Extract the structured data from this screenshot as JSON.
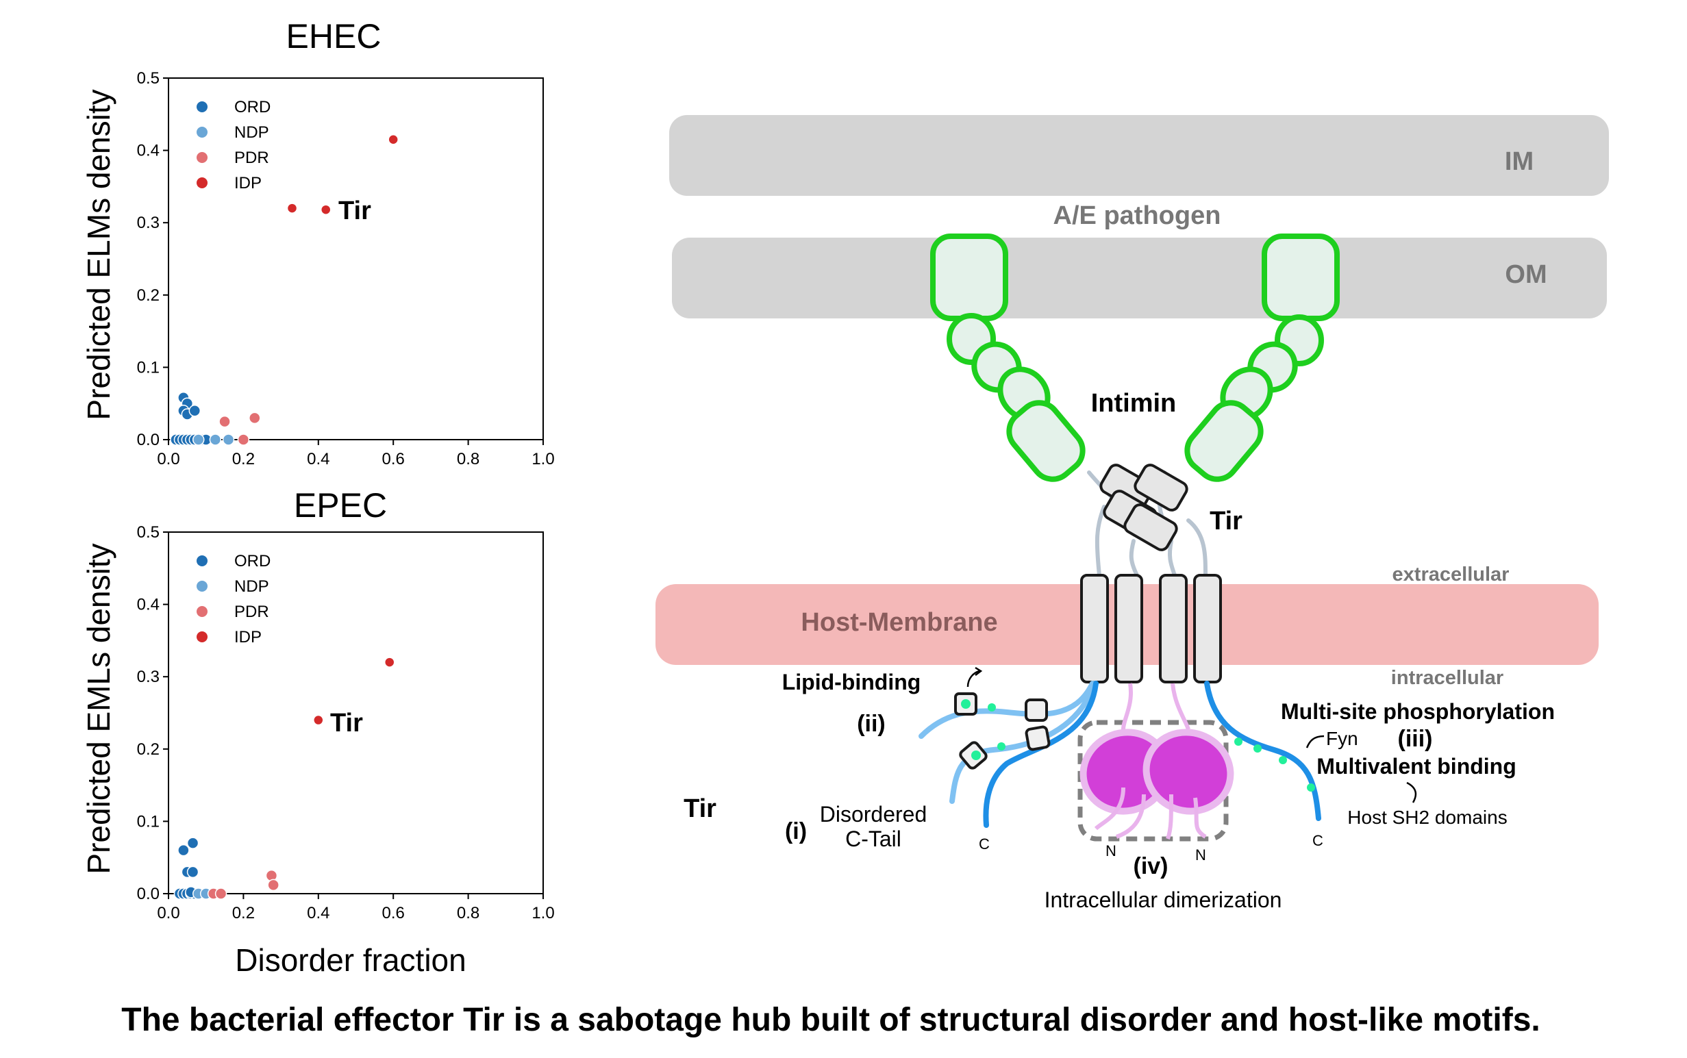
{
  "colors": {
    "ORD": "#1f6fb4",
    "NDP": "#6aa6d6",
    "PDR": "#e26f72",
    "IDP": "#d42a2a",
    "membrane_grey": "#d4d4d4",
    "host_membrane": "#f4b8b8",
    "intimin_green": "#1ecf1e",
    "intimin_fill": "#e4f2ea",
    "dimer_magenta": "#d23fd8",
    "tail_blue": "#1e8fe6",
    "tail_light_blue": "#7fc1f2",
    "phospho_dot": "#22f09a"
  },
  "chart_data": [
    {
      "type": "scatter",
      "title": "EHEC",
      "xlabel": "",
      "ylabel": "Predicted ELMs density",
      "xlim": [
        0.0,
        1.0
      ],
      "ylim": [
        0.0,
        0.5
      ],
      "xticks": [
        "0.0",
        "0.2",
        "0.4",
        "0.6",
        "0.8",
        "1.0"
      ],
      "yticks": [
        "0.0",
        "0.1",
        "0.2",
        "0.3",
        "0.4",
        "0.5"
      ],
      "legend_position": "top-left",
      "annotation": {
        "text": "Tir",
        "x": 0.42,
        "y": 0.318
      },
      "series": [
        {
          "name": "ORD",
          "points": [
            [
              0.02,
              0.0
            ],
            [
              0.03,
              0.0
            ],
            [
              0.04,
              0.0
            ],
            [
              0.05,
              0.0
            ],
            [
              0.06,
              0.0
            ],
            [
              0.07,
              0.0
            ],
            [
              0.08,
              0.0
            ],
            [
              0.09,
              0.0
            ],
            [
              0.1,
              0.0
            ],
            [
              0.04,
              0.058
            ],
            [
              0.05,
              0.05
            ],
            [
              0.04,
              0.04
            ],
            [
              0.05,
              0.035
            ],
            [
              0.07,
              0.04
            ]
          ]
        },
        {
          "name": "NDP",
          "points": [
            [
              0.08,
              0.0
            ],
            [
              0.125,
              0.0
            ],
            [
              0.16,
              0.0
            ]
          ]
        },
        {
          "name": "PDR",
          "points": [
            [
              0.15,
              0.025
            ],
            [
              0.23,
              0.03
            ],
            [
              0.2,
              0.0
            ]
          ]
        },
        {
          "name": "IDP",
          "points": [
            [
              0.33,
              0.32
            ],
            [
              0.42,
              0.318
            ],
            [
              0.6,
              0.415
            ]
          ]
        }
      ]
    },
    {
      "type": "scatter",
      "title": "EPEC",
      "xlabel": "Disorder fraction",
      "ylabel": "Predicted EMLs density",
      "xlim": [
        0.0,
        1.0
      ],
      "ylim": [
        0.0,
        0.5
      ],
      "xticks": [
        "0.0",
        "0.2",
        "0.4",
        "0.6",
        "0.8",
        "1.0"
      ],
      "yticks": [
        "0.0",
        "0.1",
        "0.2",
        "0.3",
        "0.4",
        "0.5"
      ],
      "legend_position": "top-left",
      "annotation": {
        "text": "Tir",
        "x": 0.4,
        "y": 0.24
      },
      "series": [
        {
          "name": "ORD",
          "points": [
            [
              0.03,
              0.0
            ],
            [
              0.04,
              0.0
            ],
            [
              0.05,
              0.0
            ],
            [
              0.06,
              0.0
            ],
            [
              0.07,
              0.0
            ],
            [
              0.04,
              0.06
            ],
            [
              0.05,
              0.03
            ],
            [
              0.065,
              0.03
            ],
            [
              0.065,
              0.07
            ],
            [
              0.06,
              0.002
            ]
          ]
        },
        {
          "name": "NDP",
          "points": [
            [
              0.08,
              0.0
            ],
            [
              0.1,
              0.0
            ]
          ]
        },
        {
          "name": "PDR",
          "points": [
            [
              0.12,
              0.0
            ],
            [
              0.14,
              0.0
            ],
            [
              0.275,
              0.025
            ],
            [
              0.28,
              0.012
            ]
          ]
        },
        {
          "name": "IDP",
          "points": [
            [
              0.4,
              0.24
            ],
            [
              0.59,
              0.32
            ]
          ]
        }
      ]
    }
  ],
  "diagram": {
    "im_label": "IM",
    "pathogen_label": "A/E pathogen",
    "om_label": "OM",
    "intimin_label": "Intimin",
    "tir_label": "Tir",
    "extracellular_label": "extracellular",
    "host_membrane_label": "Host-Membrane",
    "intracellular_label": "intracellular",
    "lipid_binding_label": "Lipid-binding",
    "ii_label": "(ii)",
    "multisite_label": "Multi-site phosphorylation",
    "fyn_label": "Fyn",
    "iii_label": "(iii)",
    "multivalent_label": "Multivalent binding",
    "sh2_label": "Host SH2 domains",
    "tir_side_label": "Tir",
    "i_label": "(i)",
    "disordered_line1": "Disordered",
    "disordered_line2": "C-Tail",
    "c_left": "C",
    "c_right": "C",
    "n_left": "N",
    "n_right": "N",
    "iv_label": "(iv)",
    "dimerization_label": "Intracellular dimerization"
  },
  "caption": "The bacterial effector Tir is a sabotage hub built of structural disorder and host-like motifs."
}
